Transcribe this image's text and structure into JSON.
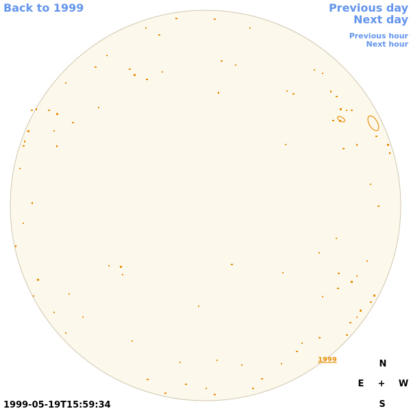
{
  "nav": {
    "back": "Back to 1999",
    "previous_day": "Previous day",
    "next_day": "Next day",
    "previous_hour": "Previous hour",
    "next_hour": "Next hour"
  },
  "region_label": "1999",
  "compass": {
    "north": "N",
    "east": "E",
    "center": "+",
    "west": "W",
    "south": "S"
  },
  "timestamp": "1999-05-19T15:59:34"
}
